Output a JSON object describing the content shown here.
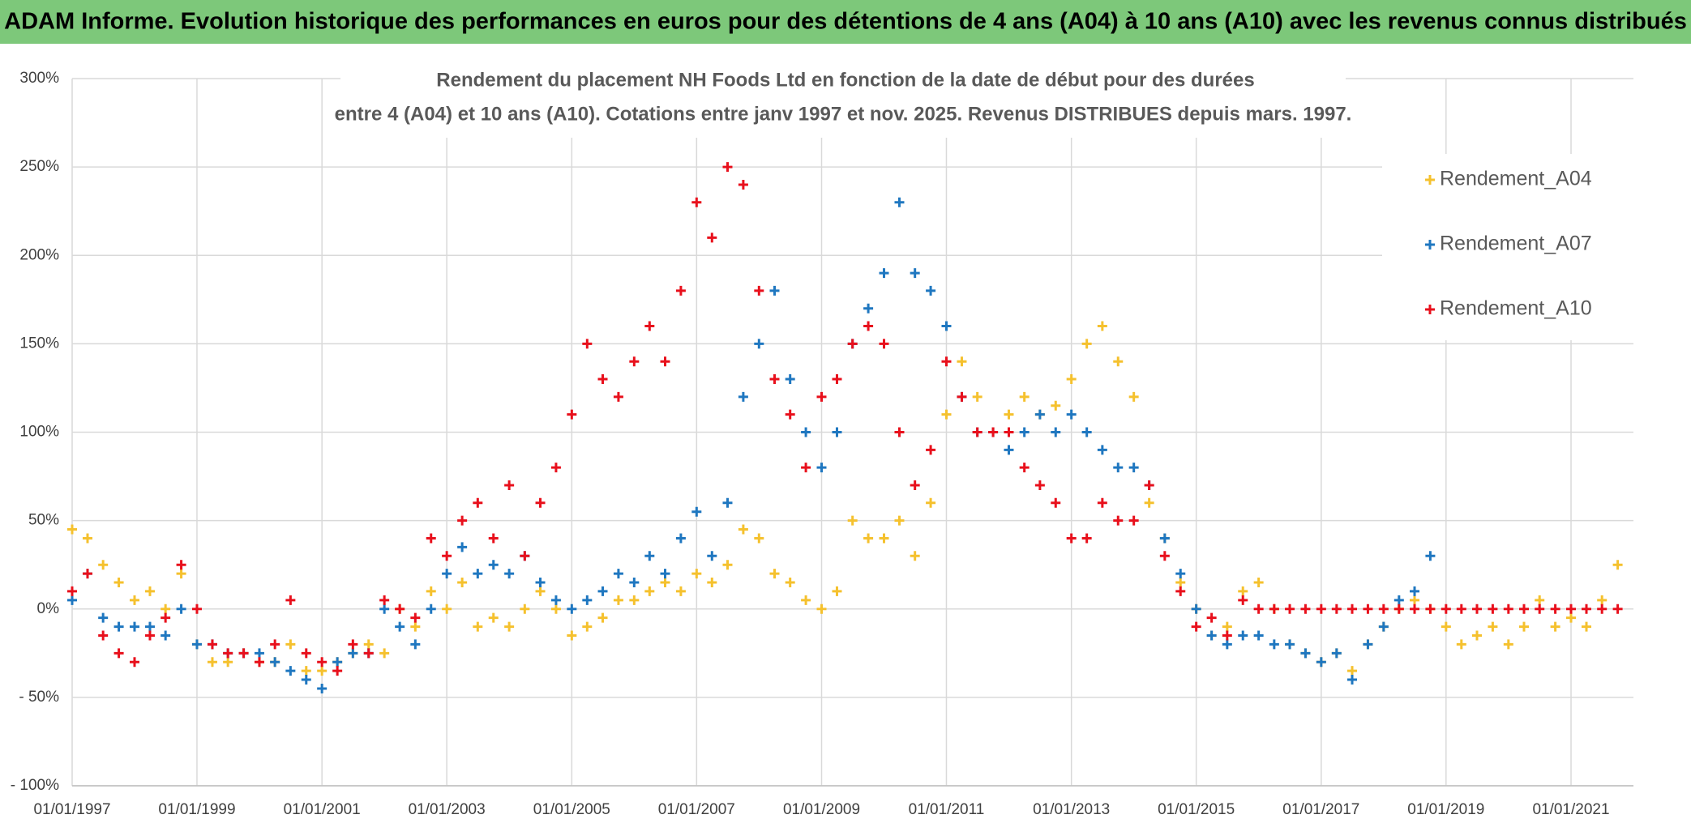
{
  "chart_data": {
    "type": "scatter",
    "title": "ADAM Informe. Evolution historique des performances en euros pour des détentions de 4 ans (A04) à 10 ans (A10) avec les revenus connus distribués",
    "subtitle": [
      "Rendement du placement NH Foods Ltd en fonction de la date de début pour des durées",
      "entre 4 (A04) et 10 ans (A10). Cotations entre janv 1997 et nov. 2025. Revenus DISTRIBUES depuis mars. 1997."
    ],
    "x": [
      "01/01/1997",
      "01/04/1997",
      "01/07/1997",
      "01/10/1997",
      "01/01/1998",
      "01/04/1998",
      "01/07/1998",
      "01/10/1998",
      "01/01/1999",
      "01/04/1999",
      "01/07/1999",
      "01/10/1999",
      "01/01/2000",
      "01/04/2000",
      "01/07/2000",
      "01/10/2000",
      "01/01/2001",
      "01/04/2001",
      "01/07/2001",
      "01/10/2001",
      "01/01/2002",
      "01/04/2002",
      "01/07/2002",
      "01/10/2002",
      "01/01/2003",
      "01/04/2003",
      "01/07/2003",
      "01/10/2003",
      "01/01/2004",
      "01/04/2004",
      "01/07/2004",
      "01/10/2004",
      "01/01/2005",
      "01/04/2005",
      "01/07/2005",
      "01/10/2005",
      "01/01/2006",
      "01/04/2006",
      "01/07/2006",
      "01/10/2006",
      "01/01/2007",
      "01/04/2007",
      "01/07/2007",
      "01/10/2007",
      "01/01/2008",
      "01/04/2008",
      "01/07/2008",
      "01/10/2008",
      "01/01/2009",
      "01/04/2009",
      "01/07/2009",
      "01/10/2009",
      "01/01/2010",
      "01/04/2010",
      "01/07/2010",
      "01/10/2010",
      "01/01/2011",
      "01/04/2011",
      "01/07/2011",
      "01/10/2011",
      "01/01/2012",
      "01/04/2012",
      "01/07/2012",
      "01/10/2012",
      "01/01/2013",
      "01/04/2013",
      "01/07/2013",
      "01/10/2013",
      "01/01/2014",
      "01/04/2014",
      "01/07/2014",
      "01/10/2014",
      "01/01/2015",
      "01/04/2015",
      "01/07/2015",
      "01/10/2015",
      "01/01/2016",
      "01/04/2016",
      "01/07/2016",
      "01/10/2016",
      "01/01/2017",
      "01/04/2017",
      "01/07/2017",
      "01/10/2017",
      "01/01/2018",
      "01/04/2018",
      "01/07/2018",
      "01/10/2018",
      "01/01/2019",
      "01/04/2019",
      "01/07/2019",
      "01/10/2019",
      "01/01/2020",
      "01/04/2020",
      "01/07/2020",
      "01/10/2020",
      "01/01/2021",
      "01/04/2021",
      "01/07/2021",
      "01/10/2021"
    ],
    "series": [
      {
        "name": "Rendement_A04",
        "color": "#f5c12e",
        "values": [
          45,
          40,
          25,
          15,
          5,
          10,
          0,
          20,
          -20,
          -30,
          -30,
          -25,
          -30,
          -30,
          -20,
          -35,
          -35,
          -30,
          -25,
          -20,
          -25,
          0,
          -10,
          10,
          0,
          15,
          -10,
          -5,
          -10,
          0,
          10,
          0,
          -15,
          -10,
          -5,
          5,
          5,
          10,
          15,
          10,
          20,
          15,
          25,
          45,
          40,
          20,
          15,
          5,
          0,
          10,
          50,
          40,
          40,
          50,
          30,
          60,
          110,
          140,
          120,
          100,
          110,
          120,
          110,
          115,
          130,
          150,
          160,
          140,
          120,
          60,
          40,
          15,
          0,
          -15,
          -10,
          10,
          15,
          0,
          -20,
          -25,
          -30,
          -25,
          -35,
          -20,
          -10,
          0,
          5,
          0,
          -10,
          -20,
          -15,
          -10,
          -20,
          -10,
          5,
          -10,
          -5,
          -10,
          5,
          25
        ]
      },
      {
        "name": "Rendement_A07",
        "color": "#1f77c0",
        "values": [
          5,
          20,
          -5,
          -10,
          -10,
          -10,
          -15,
          0,
          -20,
          -20,
          -25,
          -25,
          -25,
          -30,
          -35,
          -40,
          -45,
          -30,
          -25,
          -25,
          0,
          -10,
          -20,
          0,
          20,
          35,
          20,
          25,
          20,
          30,
          15,
          5,
          0,
          5,
          10,
          20,
          15,
          30,
          20,
          40,
          55,
          30,
          60,
          120,
          150,
          180,
          130,
          100,
          80,
          100,
          150,
          170,
          190,
          230,
          190,
          180,
          160,
          120,
          100,
          100,
          90,
          100,
          110,
          100,
          110,
          100,
          90,
          80,
          80,
          70,
          40,
          20,
          0,
          -15,
          -20,
          -15,
          -15,
          -20,
          -20,
          -25,
          -30,
          -25,
          -40,
          -20,
          -10,
          5,
          10,
          30,
          null,
          null,
          null,
          null,
          null,
          null,
          null,
          null,
          null,
          null,
          null,
          null
        ]
      },
      {
        "name": "Rendement_A10",
        "color": "#e8101c",
        "values": [
          10,
          20,
          -15,
          -25,
          -30,
          -15,
          -5,
          25,
          0,
          -20,
          -25,
          -25,
          -30,
          -20,
          5,
          -25,
          -30,
          -35,
          -20,
          -25,
          5,
          0,
          -5,
          40,
          30,
          50,
          60,
          40,
          70,
          30,
          60,
          80,
          110,
          150,
          130,
          120,
          140,
          160,
          140,
          180,
          230,
          210,
          250,
          240,
          180,
          130,
          110,
          80,
          120,
          130,
          150,
          160,
          150,
          100,
          70,
          90,
          140,
          120,
          100,
          100,
          100,
          80,
          70,
          60,
          40,
          40,
          60,
          50,
          50,
          70,
          30,
          10,
          -10,
          -5,
          -15,
          5,
          0,
          0,
          0,
          0,
          0,
          0,
          0,
          0,
          0,
          0,
          0,
          0,
          0,
          0,
          0,
          0,
          0,
          0,
          0,
          0,
          0,
          0,
          0,
          0
        ]
      }
    ],
    "xlim": [
      "01/01/1997",
      "01/01/2022"
    ],
    "xticks": [
      "01/01/1997",
      "01/01/1999",
      "01/01/2001",
      "01/01/2003",
      "01/01/2005",
      "01/01/2007",
      "01/01/2009",
      "01/01/2011",
      "01/01/2013",
      "01/01/2015",
      "01/01/2017",
      "01/01/2019",
      "01/01/2021"
    ],
    "ylim": [
      -100,
      300
    ],
    "yticks": [
      {
        "value": -100,
        "label": "- 100%"
      },
      {
        "value": -50,
        "label": "- 50%"
      },
      {
        "value": 0,
        "label": "0%"
      },
      {
        "value": 50,
        "label": "50%"
      },
      {
        "value": 100,
        "label": "100%"
      },
      {
        "value": 150,
        "label": "150%"
      },
      {
        "value": 200,
        "label": "200%"
      },
      {
        "value": 250,
        "label": "250%"
      },
      {
        "value": 300,
        "label": "300%"
      }
    ],
    "grid": true,
    "legend": "upper right"
  }
}
